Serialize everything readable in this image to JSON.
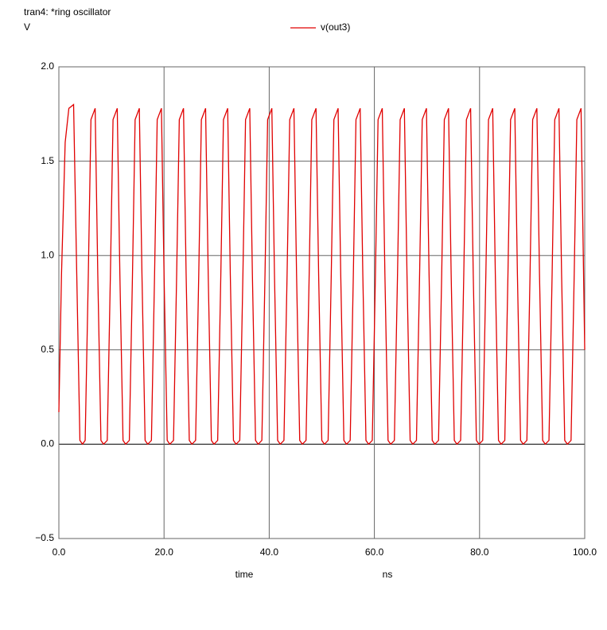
{
  "chart_data": {
    "type": "line",
    "title": "tran4: *ring oscillator",
    "ylabel": "V",
    "xlabel": "time",
    "xunit": "ns",
    "x": [
      0,
      0.5,
      1.2,
      1.9,
      2.8,
      3.4,
      4.0,
      4.5,
      5.0,
      5.6,
      6.1,
      6.9,
      7.4,
      8.0,
      8.5,
      9.2,
      9.8,
      10.3,
      11.1,
      11.6,
      12.2,
      12.7,
      13.4,
      14.0,
      14.5,
      15.3,
      15.8,
      16.4,
      16.9,
      17.6,
      18.2,
      18.7,
      19.5,
      20.0,
      20.6,
      21.1,
      21.8,
      22.4,
      22.9,
      23.7,
      24.2,
      24.8,
      25.3,
      26.0,
      26.6,
      27.1,
      27.9,
      28.4,
      29.0,
      29.5,
      30.2,
      30.8,
      31.3,
      32.1,
      32.6,
      33.2,
      33.7,
      34.4,
      35.0,
      35.5,
      36.3,
      36.8,
      37.4,
      37.9,
      38.6,
      39.2,
      39.7,
      40.5,
      41.0,
      41.6,
      42.1,
      42.8,
      43.4,
      43.9,
      44.7,
      45.2,
      45.8,
      46.3,
      47.0,
      47.6,
      48.1,
      48.9,
      49.4,
      50.0,
      50.5,
      51.2,
      51.8,
      52.3,
      53.1,
      53.6,
      54.2,
      54.7,
      55.4,
      56.0,
      56.5,
      57.3,
      57.8,
      58.4,
      58.9,
      59.6,
      60.2,
      60.7,
      61.5,
      62.0,
      62.6,
      63.1,
      63.8,
      64.4,
      64.9,
      65.7,
      66.2,
      66.8,
      67.3,
      68.0,
      68.6,
      69.1,
      69.9,
      70.4,
      71.0,
      71.5,
      72.2,
      72.8,
      73.3,
      74.1,
      74.6,
      75.2,
      75.7,
      76.4,
      77.0,
      77.5,
      78.3,
      78.8,
      79.4,
      79.9,
      80.6,
      81.2,
      81.7,
      82.5,
      83.0,
      83.6,
      84.1,
      84.8,
      85.4,
      85.9,
      86.7,
      87.2,
      87.8,
      88.3,
      89.0,
      89.6,
      90.1,
      90.9,
      91.4,
      92.0,
      92.5,
      93.2,
      93.8,
      94.3,
      95.1,
      95.6,
      96.2,
      96.7,
      97.4,
      98.0,
      98.5,
      99.3,
      100.0
    ],
    "series": [
      {
        "name": "v(out3)",
        "color": "#e00000",
        "values": [
          0.17,
          0.9,
          1.6,
          1.78,
          1.8,
          0.9,
          0.02,
          0.0,
          0.02,
          0.9,
          1.72,
          1.78,
          0.9,
          0.02,
          0.0,
          0.02,
          0.9,
          1.72,
          1.78,
          0.9,
          0.02,
          0.0,
          0.02,
          0.9,
          1.72,
          1.78,
          0.9,
          0.02,
          0.0,
          0.02,
          0.9,
          1.72,
          1.78,
          0.9,
          0.02,
          0.0,
          0.02,
          0.9,
          1.72,
          1.78,
          0.9,
          0.02,
          0.0,
          0.02,
          0.9,
          1.72,
          1.78,
          0.9,
          0.02,
          0.0,
          0.02,
          0.9,
          1.72,
          1.78,
          0.9,
          0.02,
          0.0,
          0.02,
          0.9,
          1.72,
          1.78,
          0.9,
          0.02,
          0.0,
          0.02,
          0.9,
          1.72,
          1.78,
          0.9,
          0.02,
          0.0,
          0.02,
          0.9,
          1.72,
          1.78,
          0.9,
          0.02,
          0.0,
          0.02,
          0.9,
          1.72,
          1.78,
          0.9,
          0.02,
          0.0,
          0.02,
          0.9,
          1.72,
          1.78,
          0.9,
          0.02,
          0.0,
          0.02,
          0.9,
          1.72,
          1.78,
          0.9,
          0.02,
          0.0,
          0.02,
          0.9,
          1.72,
          1.78,
          0.9,
          0.02,
          0.0,
          0.02,
          0.9,
          1.72,
          1.78,
          0.9,
          0.02,
          0.0,
          0.02,
          0.9,
          1.72,
          1.78,
          0.9,
          0.02,
          0.0,
          0.02,
          0.9,
          1.72,
          1.78,
          0.9,
          0.02,
          0.0,
          0.02,
          0.9,
          1.72,
          1.78,
          0.9,
          0.02,
          0.0,
          0.02,
          0.9,
          1.72,
          1.78,
          0.9,
          0.02,
          0.0,
          0.02,
          0.9,
          1.72,
          1.78,
          0.9,
          0.02,
          0.0,
          0.02,
          0.9,
          1.72,
          1.78,
          0.9,
          0.02,
          0.0,
          0.02,
          0.9,
          1.72,
          1.78,
          0.9,
          0.02,
          0.0,
          0.02,
          0.9,
          1.72,
          1.78,
          0.5
        ]
      }
    ],
    "xlim": [
      0,
      100
    ],
    "xticks": [
      {
        "value": 0,
        "label": "0.0"
      },
      {
        "value": 20,
        "label": "20.0"
      },
      {
        "value": 40,
        "label": "40.0"
      },
      {
        "value": 60,
        "label": "60.0"
      },
      {
        "value": 80,
        "label": "80.0"
      },
      {
        "value": 100,
        "label": "100.0"
      }
    ],
    "ylim": [
      -0.5,
      2.0
    ],
    "yticks": [
      {
        "value": -0.5,
        "label": "−0.5"
      },
      {
        "value": 0,
        "label": "0.0"
      },
      0.5,
      {
        "value": 1,
        "label": "1.0"
      },
      1.5,
      {
        "value": 2,
        "label": "2.0"
      }
    ],
    "grid": true
  }
}
